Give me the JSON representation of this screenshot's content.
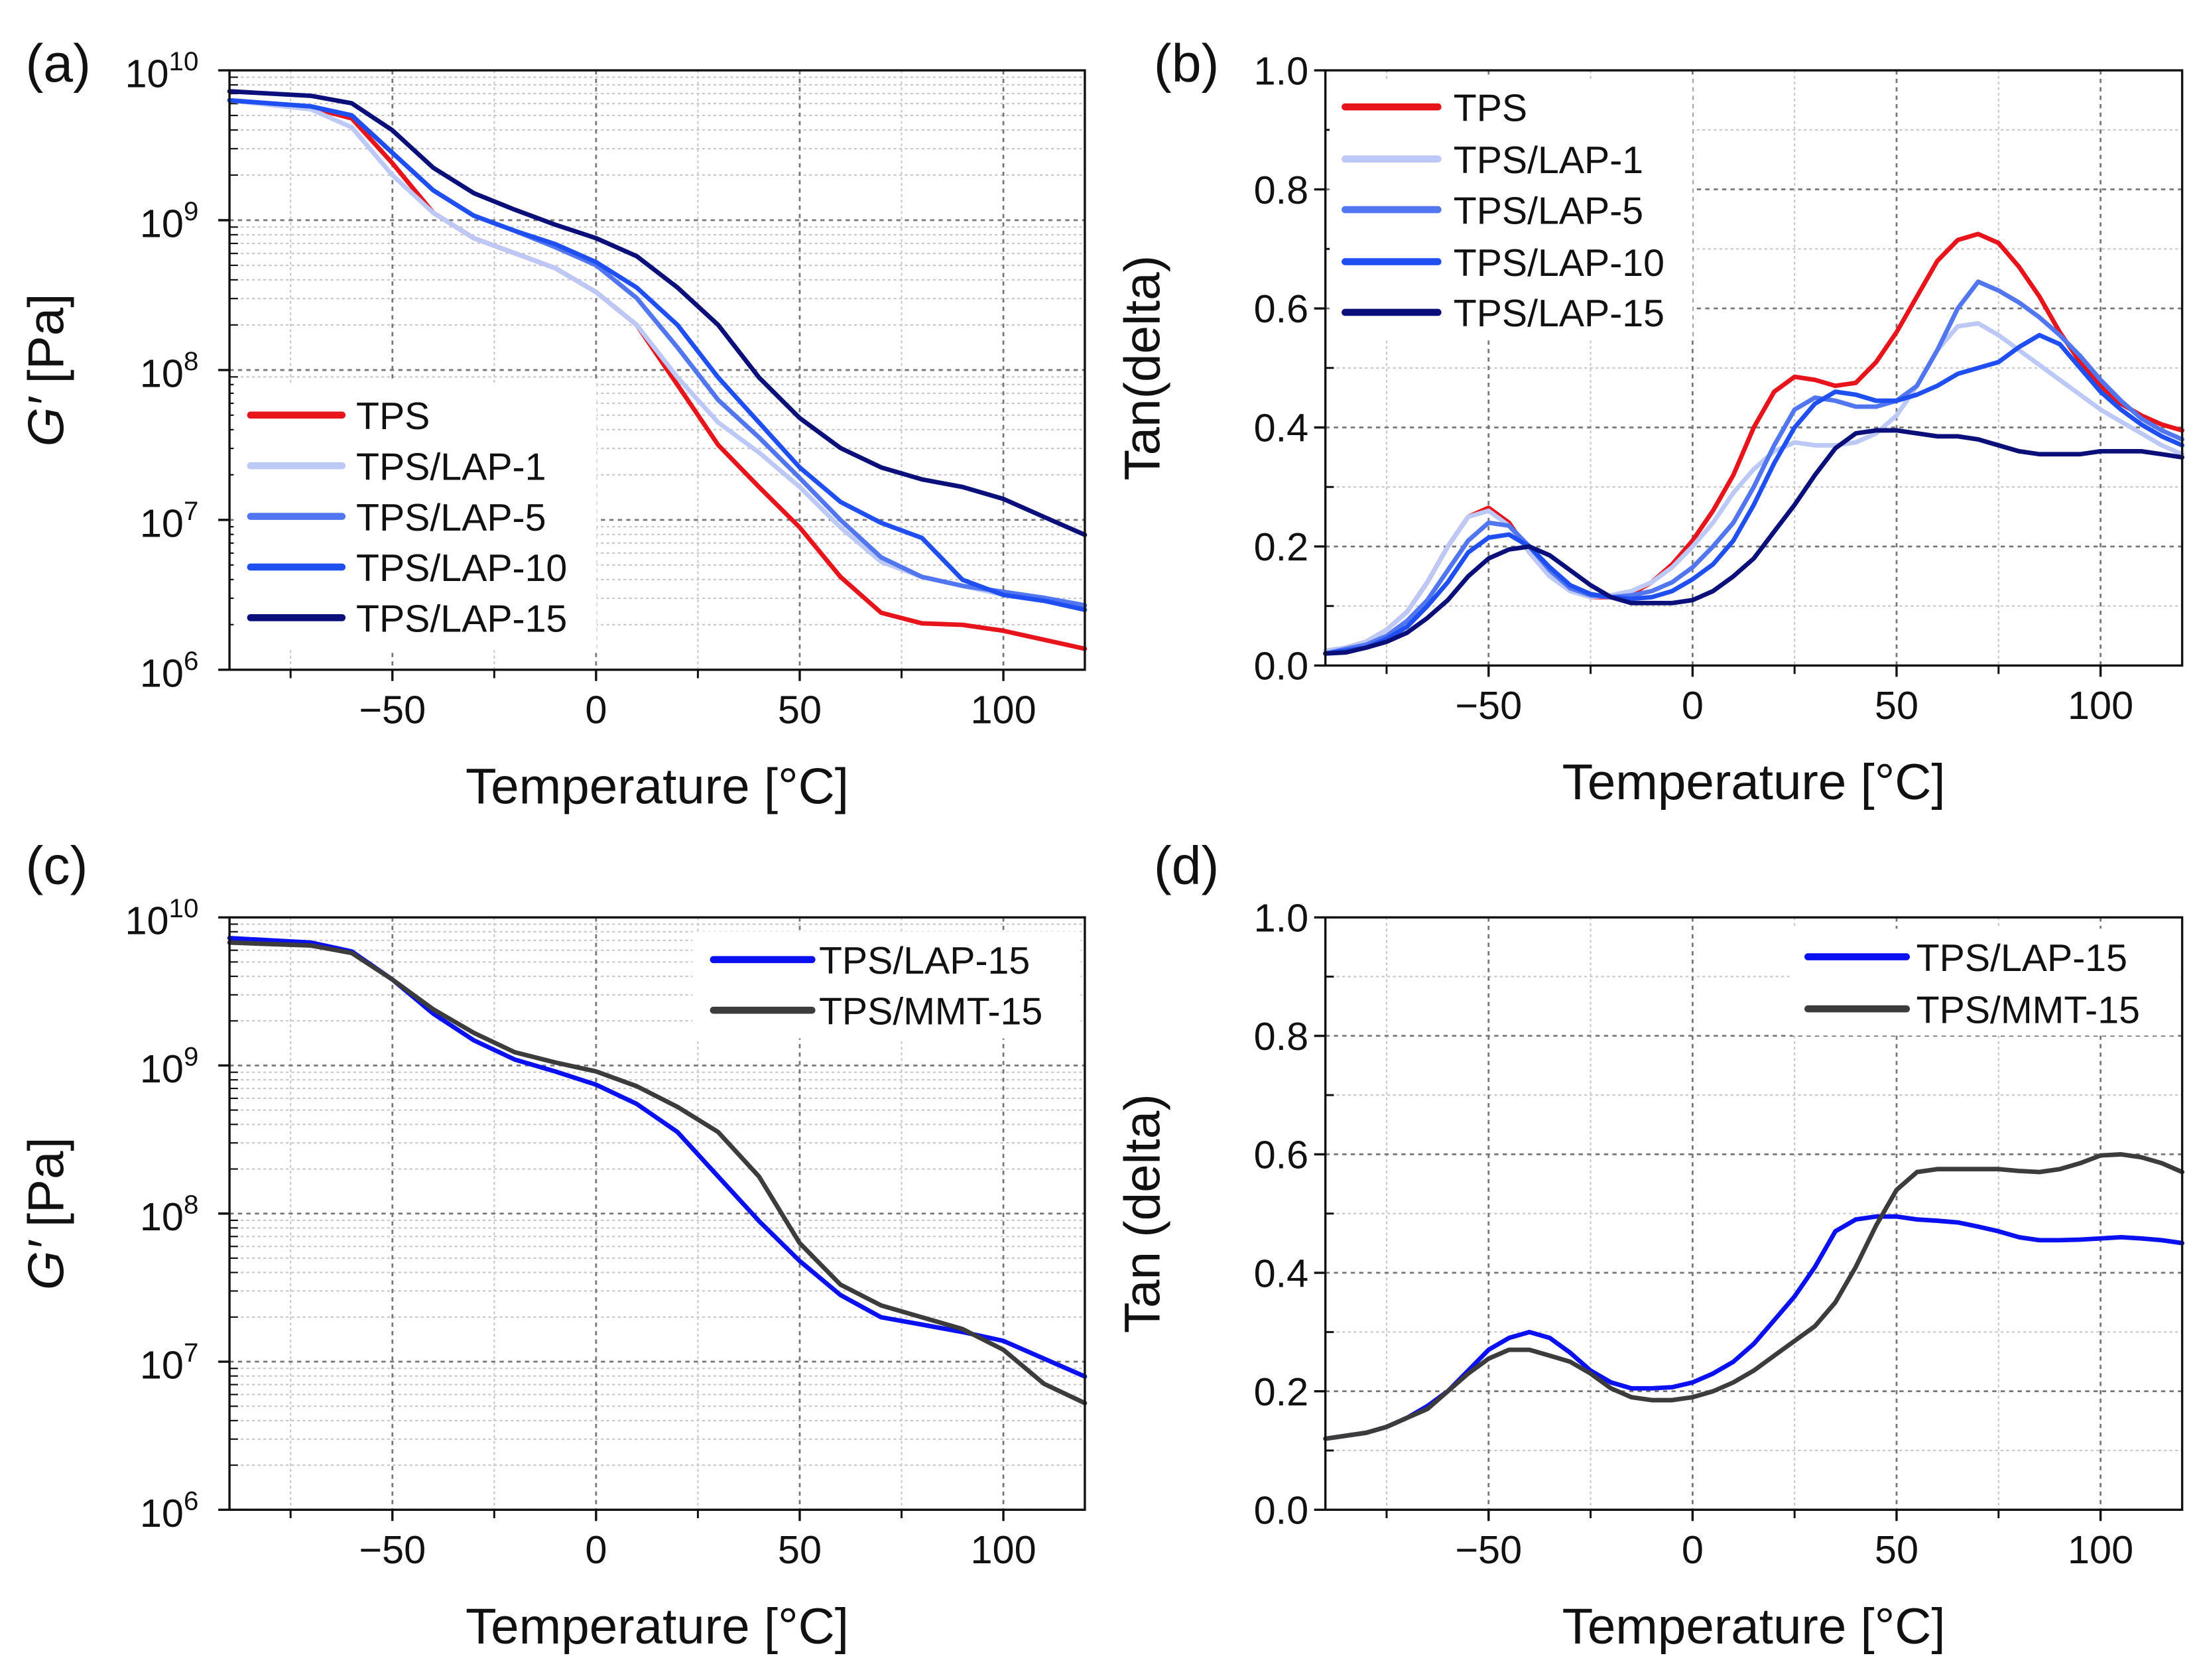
{
  "chart_data": [
    {
      "panel_label": "(a)",
      "type": "line",
      "xlabel": "Temperature [°C]",
      "ylabel_italic": "G′",
      "ylabel_rest": " [Pa]",
      "yscale": "log",
      "xlim": [
        -90,
        120
      ],
      "ylim": [
        1000000.0,
        10000000000.0
      ],
      "xticks": [
        -50,
        0,
        50,
        100
      ],
      "xtick_labels": [
        "−50",
        "0",
        "50",
        "100"
      ],
      "yticks": [
        {
          "base": "10",
          "exp": "6",
          "v": 6
        },
        {
          "base": "10",
          "exp": "7",
          "v": 7
        },
        {
          "base": "10",
          "exp": "8",
          "v": 8
        },
        {
          "base": "10",
          "exp": "9",
          "v": 9
        },
        {
          "base": "10",
          "exp": "10",
          "v": 10
        }
      ],
      "grid": true,
      "legend_position": "lower-left",
      "x": [
        -90,
        -70,
        -60,
        -50,
        -40,
        -30,
        -20,
        -10,
        0,
        10,
        20,
        30,
        40,
        50,
        60,
        70,
        80,
        90,
        100,
        110,
        120
      ],
      "series": [
        {
          "name": "TPS",
          "color": "#e8141c",
          "log10_values": [
            9.8,
            9.75,
            9.68,
            9.38,
            9.05,
            8.88,
            8.78,
            8.68,
            8.52,
            8.3,
            7.9,
            7.5,
            7.22,
            6.95,
            6.62,
            6.38,
            6.31,
            6.3,
            6.26,
            6.2,
            6.14
          ]
        },
        {
          "name": "TPS/LAP-1",
          "color": "#bcc8f5",
          "log10_values": [
            9.8,
            9.74,
            9.62,
            9.3,
            9.05,
            8.88,
            8.78,
            8.68,
            8.52,
            8.3,
            7.95,
            7.65,
            7.45,
            7.22,
            6.95,
            6.72,
            6.62,
            6.56,
            6.5,
            6.46,
            6.42
          ]
        },
        {
          "name": "TPS/LAP-5",
          "color": "#5275f0",
          "log10_values": [
            9.8,
            9.76,
            9.7,
            9.45,
            9.2,
            9.03,
            8.93,
            8.82,
            8.7,
            8.48,
            8.15,
            7.8,
            7.55,
            7.28,
            7.0,
            6.75,
            6.62,
            6.56,
            6.52,
            6.48,
            6.43
          ]
        },
        {
          "name": "TPS/LAP-10",
          "color": "#1f4ff0",
          "log10_values": [
            9.8,
            9.76,
            9.7,
            9.45,
            9.2,
            9.03,
            8.93,
            8.84,
            8.72,
            8.55,
            8.3,
            7.95,
            7.65,
            7.35,
            7.12,
            6.98,
            6.88,
            6.6,
            6.5,
            6.46,
            6.4
          ]
        },
        {
          "name": "TPS/LAP-15",
          "color": "#0a0f7a",
          "log10_values": [
            9.86,
            9.83,
            9.78,
            9.6,
            9.35,
            9.18,
            9.07,
            8.97,
            8.88,
            8.76,
            8.55,
            8.3,
            7.95,
            7.68,
            7.48,
            7.35,
            7.27,
            7.22,
            7.14,
            7.02,
            6.9
          ]
        }
      ]
    },
    {
      "panel_label": "(b)",
      "type": "line",
      "xlabel": "Temperature [°C]",
      "ylabel": "Tan(delta)",
      "yscale": "linear",
      "xlim": [
        -90,
        120
      ],
      "ylim": [
        0,
        1.0
      ],
      "xticks": [
        -50,
        0,
        50,
        100
      ],
      "xtick_labels": [
        "−50",
        "0",
        "50",
        "100"
      ],
      "yticks": [
        0,
        0.2,
        0.4,
        0.6,
        0.8,
        1.0
      ],
      "ytick_labels": [
        "0.0",
        "0.2",
        "0.4",
        "0.6",
        "0.8",
        "1.0"
      ],
      "grid": true,
      "legend_position": "upper-left",
      "x": [
        -90,
        -85,
        -80,
        -75,
        -70,
        -65,
        -60,
        -55,
        -50,
        -45,
        -40,
        -35,
        -30,
        -25,
        -20,
        -15,
        -10,
        -5,
        0,
        5,
        10,
        15,
        20,
        25,
        30,
        35,
        40,
        45,
        50,
        55,
        60,
        65,
        70,
        75,
        80,
        85,
        90,
        95,
        100,
        105,
        110,
        115,
        120
      ],
      "series": [
        {
          "name": "TPS",
          "color": "#e8141c",
          "values": [
            0.02,
            0.03,
            0.04,
            0.06,
            0.09,
            0.14,
            0.2,
            0.25,
            0.265,
            0.24,
            0.19,
            0.15,
            0.13,
            0.115,
            0.115,
            0.12,
            0.14,
            0.17,
            0.21,
            0.26,
            0.32,
            0.4,
            0.46,
            0.485,
            0.48,
            0.47,
            0.475,
            0.51,
            0.56,
            0.62,
            0.68,
            0.715,
            0.725,
            0.71,
            0.67,
            0.62,
            0.56,
            0.51,
            0.47,
            0.44,
            0.42,
            0.405,
            0.395
          ]
        },
        {
          "name": "TPS/LAP-1",
          "color": "#bcc8f5",
          "values": [
            0.025,
            0.03,
            0.04,
            0.06,
            0.09,
            0.14,
            0.2,
            0.25,
            0.26,
            0.235,
            0.19,
            0.15,
            0.125,
            0.115,
            0.118,
            0.125,
            0.14,
            0.165,
            0.2,
            0.24,
            0.29,
            0.33,
            0.36,
            0.375,
            0.37,
            0.37,
            0.375,
            0.39,
            0.42,
            0.47,
            0.53,
            0.57,
            0.575,
            0.555,
            0.53,
            0.505,
            0.48,
            0.455,
            0.43,
            0.41,
            0.39,
            0.37,
            0.355
          ]
        },
        {
          "name": "TPS/LAP-5",
          "color": "#5275f0",
          "values": [
            0.02,
            0.028,
            0.035,
            0.05,
            0.075,
            0.11,
            0.16,
            0.21,
            0.24,
            0.235,
            0.2,
            0.16,
            0.13,
            0.118,
            0.115,
            0.118,
            0.125,
            0.14,
            0.165,
            0.2,
            0.24,
            0.3,
            0.37,
            0.43,
            0.45,
            0.445,
            0.435,
            0.435,
            0.445,
            0.47,
            0.53,
            0.6,
            0.645,
            0.63,
            0.61,
            0.585,
            0.555,
            0.52,
            0.48,
            0.445,
            0.415,
            0.395,
            0.38
          ]
        },
        {
          "name": "TPS/LAP-10",
          "color": "#1f4ff0",
          "values": [
            0.02,
            0.025,
            0.03,
            0.045,
            0.065,
            0.1,
            0.14,
            0.19,
            0.215,
            0.22,
            0.2,
            0.165,
            0.135,
            0.12,
            0.115,
            0.112,
            0.115,
            0.125,
            0.145,
            0.17,
            0.21,
            0.27,
            0.34,
            0.4,
            0.44,
            0.46,
            0.455,
            0.445,
            0.445,
            0.455,
            0.47,
            0.49,
            0.5,
            0.51,
            0.535,
            0.555,
            0.54,
            0.5,
            0.46,
            0.43,
            0.405,
            0.385,
            0.37
          ]
        },
        {
          "name": "TPS/LAP-15",
          "color": "#0a0f7a",
          "values": [
            0.02,
            0.022,
            0.03,
            0.04,
            0.055,
            0.08,
            0.11,
            0.15,
            0.18,
            0.195,
            0.2,
            0.185,
            0.16,
            0.135,
            0.115,
            0.105,
            0.105,
            0.105,
            0.11,
            0.125,
            0.15,
            0.18,
            0.225,
            0.27,
            0.32,
            0.365,
            0.39,
            0.395,
            0.395,
            0.39,
            0.385,
            0.385,
            0.38,
            0.37,
            0.36,
            0.355,
            0.355,
            0.355,
            0.36,
            0.36,
            0.36,
            0.355,
            0.35
          ]
        }
      ]
    },
    {
      "panel_label": "(c)",
      "type": "line",
      "xlabel": "Temperature [°C]",
      "ylabel_italic": "G′",
      "ylabel_rest": " [Pa]",
      "yscale": "log",
      "xlim": [
        -90,
        120
      ],
      "ylim": [
        1000000.0,
        10000000000.0
      ],
      "xticks": [
        -50,
        0,
        50,
        100
      ],
      "xtick_labels": [
        "−50",
        "0",
        "50",
        "100"
      ],
      "yticks": [
        {
          "base": "10",
          "exp": "6",
          "v": 6
        },
        {
          "base": "10",
          "exp": "7",
          "v": 7
        },
        {
          "base": "10",
          "exp": "8",
          "v": 8
        },
        {
          "base": "10",
          "exp": "9",
          "v": 9
        },
        {
          "base": "10",
          "exp": "10",
          "v": 10
        }
      ],
      "grid": true,
      "legend_position": "upper-right",
      "x": [
        -90,
        -70,
        -60,
        -50,
        -40,
        -30,
        -20,
        -10,
        0,
        10,
        20,
        30,
        40,
        50,
        60,
        70,
        80,
        90,
        100,
        110,
        120
      ],
      "series": [
        {
          "name": "TPS/LAP-15",
          "color": "#0a10f0",
          "log10_values": [
            9.86,
            9.83,
            9.77,
            9.58,
            9.35,
            9.17,
            9.04,
            8.96,
            8.87,
            8.74,
            8.55,
            8.25,
            7.95,
            7.68,
            7.45,
            7.3,
            7.25,
            7.2,
            7.14,
            7.02,
            6.9
          ]
        },
        {
          "name": "TPS/MMT-15",
          "color": "#3c3c3c",
          "log10_values": [
            9.83,
            9.81,
            9.76,
            9.58,
            9.38,
            9.22,
            9.09,
            9.02,
            8.96,
            8.86,
            8.72,
            8.55,
            8.25,
            7.8,
            7.52,
            7.38,
            7.3,
            7.22,
            7.08,
            6.85,
            6.72
          ]
        }
      ]
    },
    {
      "panel_label": "(d)",
      "type": "line",
      "xlabel": "Temperature [°C]",
      "ylabel": "Tan (delta)",
      "yscale": "linear",
      "xlim": [
        -90,
        120
      ],
      "ylim": [
        0,
        1.0
      ],
      "xticks": [
        -50,
        0,
        50,
        100
      ],
      "xtick_labels": [
        "−50",
        "0",
        "50",
        "100"
      ],
      "yticks": [
        0,
        0.2,
        0.4,
        0.6,
        0.8,
        1.0
      ],
      "ytick_labels": [
        "0.0",
        "0.2",
        "0.4",
        "0.6",
        "0.8",
        "1.0"
      ],
      "grid": true,
      "legend_position": "upper-right",
      "x": [
        -90,
        -85,
        -80,
        -75,
        -70,
        -65,
        -60,
        -55,
        -50,
        -45,
        -40,
        -35,
        -30,
        -25,
        -20,
        -15,
        -10,
        -5,
        0,
        5,
        10,
        15,
        20,
        25,
        30,
        35,
        40,
        45,
        50,
        55,
        60,
        65,
        70,
        75,
        80,
        85,
        90,
        95,
        100,
        105,
        110,
        115,
        120
      ],
      "series": [
        {
          "name": "TPS/LAP-15",
          "color": "#0a10f0",
          "values": [
            0.12,
            0.125,
            0.13,
            0.14,
            0.155,
            0.175,
            0.2,
            0.235,
            0.27,
            0.29,
            0.3,
            0.29,
            0.265,
            0.235,
            0.215,
            0.205,
            0.205,
            0.207,
            0.215,
            0.23,
            0.25,
            0.28,
            0.32,
            0.36,
            0.41,
            0.47,
            0.49,
            0.495,
            0.495,
            0.49,
            0.488,
            0.485,
            0.478,
            0.47,
            0.46,
            0.455,
            0.455,
            0.456,
            0.458,
            0.46,
            0.458,
            0.455,
            0.45
          ]
        },
        {
          "name": "TPS/MMT-15",
          "color": "#3c3c3c",
          "values": [
            0.12,
            0.125,
            0.13,
            0.14,
            0.155,
            0.17,
            0.2,
            0.23,
            0.255,
            0.27,
            0.27,
            0.26,
            0.25,
            0.23,
            0.205,
            0.19,
            0.185,
            0.185,
            0.19,
            0.2,
            0.215,
            0.235,
            0.26,
            0.285,
            0.31,
            0.35,
            0.41,
            0.48,
            0.54,
            0.57,
            0.575,
            0.575,
            0.575,
            0.575,
            0.572,
            0.57,
            0.575,
            0.585,
            0.598,
            0.6,
            0.595,
            0.585,
            0.57
          ]
        }
      ]
    }
  ]
}
